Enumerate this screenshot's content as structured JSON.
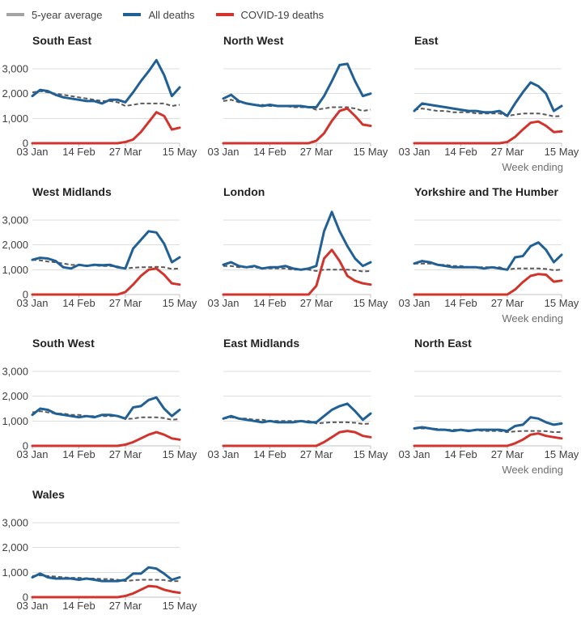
{
  "legend": {
    "items": [
      {
        "label": "5-year average",
        "color": "#a3a3a3"
      },
      {
        "label": "All deaths",
        "color": "#206095"
      },
      {
        "label": "COVID-19 deaths",
        "color": "#d0342c"
      }
    ]
  },
  "colors": {
    "all_deaths_line": "#206095",
    "covid_deaths_line": "#d0342c",
    "five_year_average_line": "#595959",
    "gridline": "#dedede",
    "axis_line": "#c0c0c0",
    "tick_label": "#414042",
    "title_text": "#222222",
    "axis_title_text": "#6e6e6e"
  },
  "axes": {
    "x_tick_labels": [
      "03 Jan",
      "14 Feb",
      "27 Mar",
      "15 May"
    ],
    "x_tick_week_indexes": [
      0,
      6,
      12,
      19
    ],
    "n_points": 20,
    "x_axis_title": "Week ending",
    "y_tick_labels": [
      "0",
      "1,000",
      "2,000",
      "3,000"
    ],
    "y_tick_values": [
      0,
      1000,
      2000,
      3000
    ],
    "ylim": [
      0,
      3400
    ],
    "grid": true
  },
  "chart_data": [
    {
      "type": "line",
      "title": "South East",
      "xlabel": "",
      "y_labels_visible": true,
      "series": [
        {
          "name": "5-year average",
          "values": [
            2050,
            2100,
            2050,
            2000,
            1950,
            1900,
            1850,
            1800,
            1750,
            1700,
            1700,
            1650,
            1500,
            1550,
            1600,
            1600,
            1600,
            1600,
            1500,
            1550
          ]
        },
        {
          "name": "All deaths",
          "values": [
            1900,
            2150,
            2100,
            1950,
            1850,
            1800,
            1750,
            1700,
            1700,
            1600,
            1750,
            1750,
            1650,
            2050,
            2500,
            2900,
            3350,
            2750,
            1900,
            2250
          ]
        },
        {
          "name": "COVID-19 deaths",
          "values": [
            0,
            0,
            0,
            0,
            0,
            0,
            0,
            0,
            0,
            0,
            0,
            0,
            50,
            150,
            450,
            850,
            1250,
            1100,
            550,
            625
          ]
        }
      ]
    },
    {
      "type": "line",
      "title": "North West",
      "xlabel": "",
      "y_labels_visible": false,
      "series": [
        {
          "name": "5-year average",
          "values": [
            1700,
            1750,
            1650,
            1600,
            1550,
            1550,
            1500,
            1500,
            1500,
            1450,
            1450,
            1450,
            1350,
            1400,
            1450,
            1450,
            1450,
            1400,
            1300,
            1350
          ]
        },
        {
          "name": "All deaths",
          "values": [
            1800,
            1950,
            1700,
            1600,
            1550,
            1500,
            1550,
            1500,
            1500,
            1500,
            1500,
            1450,
            1450,
            1900,
            2500,
            3150,
            3200,
            2500,
            1900,
            2000
          ]
        },
        {
          "name": "COVID-19 deaths",
          "values": [
            0,
            0,
            0,
            0,
            0,
            0,
            0,
            0,
            0,
            0,
            0,
            0,
            100,
            400,
            900,
            1300,
            1400,
            1100,
            750,
            700
          ]
        }
      ]
    },
    {
      "type": "line",
      "title": "East",
      "xlabel": "Week ending",
      "y_labels_visible": false,
      "series": [
        {
          "name": "5-year average",
          "values": [
            1350,
            1400,
            1350,
            1300,
            1300,
            1250,
            1250,
            1250,
            1200,
            1200,
            1200,
            1200,
            1100,
            1150,
            1200,
            1200,
            1200,
            1150,
            1080,
            1100
          ]
        },
        {
          "name": "All deaths",
          "values": [
            1300,
            1600,
            1550,
            1500,
            1450,
            1400,
            1350,
            1300,
            1300,
            1250,
            1250,
            1300,
            1100,
            1600,
            2050,
            2450,
            2300,
            2000,
            1300,
            1500
          ]
        },
        {
          "name": "COVID-19 deaths",
          "values": [
            0,
            0,
            0,
            0,
            0,
            0,
            0,
            0,
            0,
            0,
            0,
            0,
            50,
            250,
            550,
            825,
            875,
            700,
            450,
            475
          ]
        }
      ]
    },
    {
      "type": "line",
      "title": "West Midlands",
      "xlabel": "",
      "y_labels_visible": true,
      "series": [
        {
          "name": "5-year average",
          "values": [
            1400,
            1380,
            1330,
            1300,
            1250,
            1200,
            1180,
            1170,
            1170,
            1150,
            1150,
            1130,
            1050,
            1080,
            1100,
            1100,
            1120,
            1100,
            1030,
            1050
          ]
        },
        {
          "name": "All deaths",
          "values": [
            1400,
            1480,
            1450,
            1350,
            1100,
            1050,
            1200,
            1150,
            1200,
            1180,
            1200,
            1100,
            1050,
            1850,
            2200,
            2550,
            2500,
            2050,
            1300,
            1500
          ]
        },
        {
          "name": "COVID-19 deaths",
          "values": [
            0,
            0,
            0,
            0,
            0,
            0,
            0,
            0,
            0,
            0,
            0,
            0,
            100,
            400,
            750,
            1000,
            1050,
            800,
            450,
            400
          ]
        }
      ]
    },
    {
      "type": "line",
      "title": "London",
      "xlabel": "",
      "y_labels_visible": false,
      "series": [
        {
          "name": "5-year average",
          "values": [
            1150,
            1150,
            1100,
            1100,
            1100,
            1050,
            1050,
            1050,
            1050,
            1000,
            1000,
            1000,
            950,
            1000,
            1000,
            1000,
            1000,
            980,
            930,
            950
          ]
        },
        {
          "name": "All deaths",
          "values": [
            1200,
            1300,
            1150,
            1100,
            1150,
            1050,
            1100,
            1100,
            1150,
            1050,
            1000,
            1050,
            1150,
            2550,
            3330,
            2550,
            1950,
            1450,
            1150,
            1300
          ]
        },
        {
          "name": "COVID-19 deaths",
          "values": [
            0,
            0,
            0,
            0,
            0,
            0,
            0,
            0,
            0,
            0,
            0,
            0,
            350,
            1450,
            1800,
            1350,
            750,
            550,
            450,
            400
          ]
        }
      ]
    },
    {
      "type": "line",
      "title": "Yorkshire and The Humber",
      "xlabel": "Week ending",
      "y_labels_visible": false,
      "series": [
        {
          "name": "5-year average",
          "values": [
            1250,
            1250,
            1250,
            1200,
            1200,
            1150,
            1150,
            1100,
            1100,
            1100,
            1100,
            1100,
            1000,
            1050,
            1050,
            1050,
            1050,
            1030,
            980,
            1000
          ]
        },
        {
          "name": "All deaths",
          "values": [
            1250,
            1350,
            1300,
            1200,
            1150,
            1100,
            1100,
            1100,
            1100,
            1050,
            1100,
            1050,
            1000,
            1500,
            1550,
            1950,
            2100,
            1800,
            1300,
            1600
          ]
        },
        {
          "name": "COVID-19 deaths",
          "values": [
            0,
            0,
            0,
            0,
            0,
            0,
            0,
            0,
            0,
            0,
            0,
            0,
            0,
            200,
            500,
            750,
            825,
            800,
            520,
            560
          ]
        }
      ]
    },
    {
      "type": "line",
      "title": "South West",
      "xlabel": "",
      "y_labels_visible": true,
      "series": [
        {
          "name": "5-year average",
          "values": [
            1350,
            1400,
            1350,
            1300,
            1300,
            1250,
            1250,
            1200,
            1200,
            1200,
            1200,
            1200,
            1080,
            1100,
            1150,
            1150,
            1150,
            1120,
            1050,
            1080
          ]
        },
        {
          "name": "All deaths",
          "values": [
            1250,
            1500,
            1450,
            1300,
            1250,
            1200,
            1150,
            1200,
            1150,
            1250,
            1250,
            1200,
            1100,
            1550,
            1600,
            1850,
            1950,
            1500,
            1200,
            1450
          ]
        },
        {
          "name": "COVID-19 deaths",
          "values": [
            0,
            0,
            0,
            0,
            0,
            0,
            0,
            0,
            0,
            0,
            0,
            0,
            50,
            150,
            300,
            450,
            550,
            450,
            300,
            250
          ]
        }
      ]
    },
    {
      "type": "line",
      "title": "East Midlands",
      "xlabel": "",
      "y_labels_visible": false,
      "series": [
        {
          "name": "5-year average",
          "values": [
            1100,
            1150,
            1100,
            1100,
            1050,
            1050,
            1000,
            1000,
            1000,
            1000,
            1000,
            1000,
            900,
            930,
            950,
            950,
            950,
            930,
            880,
            900
          ]
        },
        {
          "name": "All deaths",
          "values": [
            1100,
            1200,
            1100,
            1050,
            1000,
            950,
            1000,
            950,
            950,
            950,
            1000,
            950,
            950,
            1200,
            1450,
            1600,
            1700,
            1400,
            1050,
            1300
          ]
        },
        {
          "name": "COVID-19 deaths",
          "values": [
            0,
            0,
            0,
            0,
            0,
            0,
            0,
            0,
            0,
            0,
            0,
            0,
            0,
            150,
            350,
            550,
            600,
            550,
            400,
            350
          ]
        }
      ]
    },
    {
      "type": "line",
      "title": "North East",
      "xlabel": "Week ending",
      "y_labels_visible": false,
      "series": [
        {
          "name": "5-year average",
          "values": [
            700,
            700,
            700,
            680,
            650,
            650,
            650,
            630,
            630,
            600,
            600,
            600,
            550,
            580,
            600,
            600,
            600,
            590,
            550,
            560
          ]
        },
        {
          "name": "All deaths",
          "values": [
            700,
            750,
            700,
            650,
            650,
            600,
            650,
            600,
            650,
            650,
            650,
            650,
            600,
            800,
            850,
            1150,
            1100,
            950,
            850,
            900
          ]
        },
        {
          "name": "COVID-19 deaths",
          "values": [
            0,
            0,
            0,
            0,
            0,
            0,
            0,
            0,
            0,
            0,
            0,
            0,
            0,
            100,
            250,
            450,
            500,
            400,
            350,
            300
          ]
        }
      ]
    },
    {
      "type": "line",
      "title": "Wales",
      "xlabel": "",
      "y_labels_visible": true,
      "series": [
        {
          "name": "5-year average",
          "values": [
            850,
            880,
            850,
            830,
            800,
            780,
            780,
            750,
            750,
            730,
            730,
            700,
            650,
            680,
            700,
            700,
            700,
            690,
            640,
            650
          ]
        },
        {
          "name": "All deaths",
          "values": [
            800,
            950,
            800,
            750,
            750,
            750,
            700,
            750,
            700,
            650,
            650,
            650,
            700,
            950,
            950,
            1200,
            1150,
            950,
            700,
            800
          ]
        },
        {
          "name": "COVID-19 deaths",
          "values": [
            0,
            0,
            0,
            0,
            0,
            0,
            0,
            0,
            0,
            0,
            0,
            0,
            50,
            150,
            300,
            450,
            425,
            300,
            225,
            175
          ]
        }
      ]
    }
  ]
}
